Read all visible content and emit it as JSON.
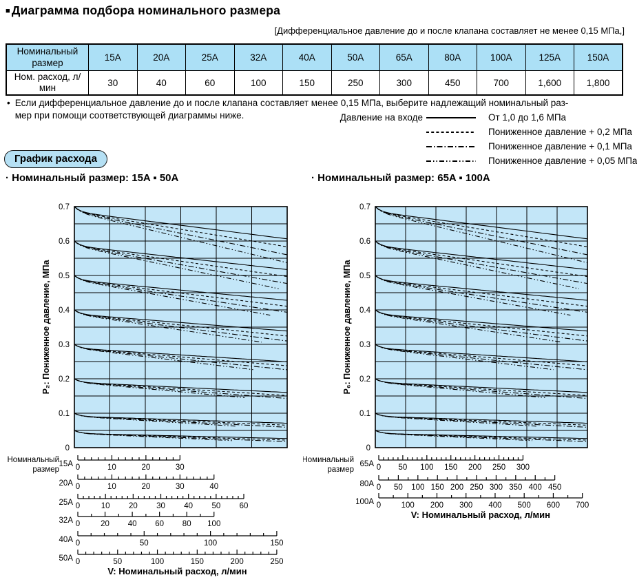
{
  "page": {
    "title_bullet": "■",
    "title": "Диаграмма подбора номинального размера",
    "pressure_note": "[Дифференциальное давление до и после клапана составляет не менее 0,15 МПа,]"
  },
  "table": {
    "header_label": "Номинальный размер",
    "row_label": "Ном. расход, л/мин",
    "sizes": [
      "15A",
      "20A",
      "25A",
      "32A",
      "40A",
      "50A",
      "65A",
      "80A",
      "100A",
      "125A",
      "150A"
    ],
    "flows": [
      "30",
      "40",
      "60",
      "100",
      "150",
      "250",
      "300",
      "450",
      "700",
      "1,600",
      "1,800"
    ]
  },
  "bullet_note": {
    "bullet": "•",
    "lines": [
      "Если дифференциальное давление до и после клапана составляет менее 0,15 МПа, выберите надлежащий номинальный раз-",
      "мер при помощи соответствующей диаграммы ниже."
    ]
  },
  "legend": {
    "title": "Давление на входе",
    "items": [
      {
        "label": "От 1,0 до 1,6 МПа",
        "style": "solid"
      },
      {
        "label": "Пониженное давление + 0,2 МПа",
        "style": "dashed"
      },
      {
        "label": "Пониженное давление + 0,1 МПа",
        "style": "dashdot"
      },
      {
        "label": "Пониженное давление + 0,05 МПа",
        "style": "dashdotdot"
      }
    ]
  },
  "badge": {
    "label": "График расхода"
  },
  "colors": {
    "chart_bg": "#c3e6f8",
    "table_header_bg": "#ace0f6",
    "badge_bg": "#b5e0f4",
    "badge_border": "#1a1a1a",
    "line": "#000000"
  },
  "chart_data": [
    {
      "type": "line",
      "title": "· Номинальный размер:  15A ▪ 50A",
      "ylabel": "P₂: Пониженное давление, МПа",
      "xlabel": "V: Номинальный расход, л/мин",
      "ylim": [
        0,
        0.7
      ],
      "y_major_ticks": [
        "0.7",
        "0.6",
        "0.5",
        "0.4",
        "0.3",
        "0.2",
        "0.1",
        "0"
      ],
      "y_grid_step": 0.05,
      "x_columns": 6,
      "grid": true,
      "family_start_pressures": [
        0.7,
        0.6,
        0.5,
        0.4,
        0.3,
        0.2,
        0.1,
        0.05
      ],
      "series": [
        {
          "name": "От 1,0 до 1,6 МПа",
          "style": "solid"
        },
        {
          "name": "Пониженное давление + 0,2 МПа",
          "style": "dashed"
        },
        {
          "name": "Пониженное давление + 0,1 МПа",
          "style": "dashdot"
        },
        {
          "name": "Пониженное давление + 0,05 МПа",
          "style": "dashdotdot"
        }
      ],
      "sizes_axis_label": "Номинальный размер",
      "scales": [
        {
          "size": "15A",
          "max": 30,
          "label_step": 10,
          "minor_step": 2,
          "width_frac": 0.48
        },
        {
          "size": "20A",
          "max": 40,
          "label_step": 10,
          "minor_step": 2,
          "width_frac": 0.64
        },
        {
          "size": "25A",
          "max": 60,
          "label_step": 10,
          "minor_step": 2,
          "width_frac": 0.78
        },
        {
          "size": "32A",
          "max": 100,
          "label_step": 20,
          "minor_step": 10,
          "width_frac": 0.64
        },
        {
          "size": "40A",
          "max": 150,
          "label_step": 50,
          "minor_step": 10,
          "width_frac": 0.935
        },
        {
          "size": "50A",
          "max": 250,
          "label_step": 50,
          "minor_step": 10,
          "width_frac": 0.935
        }
      ]
    },
    {
      "type": "line",
      "title": "· Номинальный размер: 65A ▪ 100A",
      "ylabel": "P₆: Пониженное давление, МПа",
      "xlabel": "V: Номинальный расход, л/мин",
      "ylim": [
        0,
        0.7
      ],
      "y_major_ticks": [
        "0.7",
        "0.6",
        "0.5",
        "0.4",
        "0.3",
        "0.2",
        "0.1",
        "0"
      ],
      "y_grid_step": 0.05,
      "x_columns": 7,
      "grid": true,
      "family_start_pressures": [
        0.7,
        0.6,
        0.5,
        0.4,
        0.3,
        0.2,
        0.1,
        0.05
      ],
      "series": [
        {
          "name": "От 1,0 до 1,6 МПа",
          "style": "solid"
        },
        {
          "name": "Пониженное давление + 0,2 МПа",
          "style": "dashed"
        },
        {
          "name": "Пониженное давление + 0,1 МПа",
          "style": "dashdot"
        },
        {
          "name": "Пониженное давление + 0,05 МПа",
          "style": "dashdotdot"
        }
      ],
      "sizes_axis_label": "Номинальный размер",
      "scales": [
        {
          "size": "65A",
          "max": 300,
          "label_step": 50,
          "minor_step": 10,
          "width_frac": 0.68
        },
        {
          "size": "80A",
          "max": 450,
          "label_step": 50,
          "minor_step": 25,
          "width_frac": 0.83
        },
        {
          "size": "100A",
          "max": 700,
          "label_step": 100,
          "minor_step": 50,
          "width_frac": 0.96
        }
      ]
    }
  ]
}
